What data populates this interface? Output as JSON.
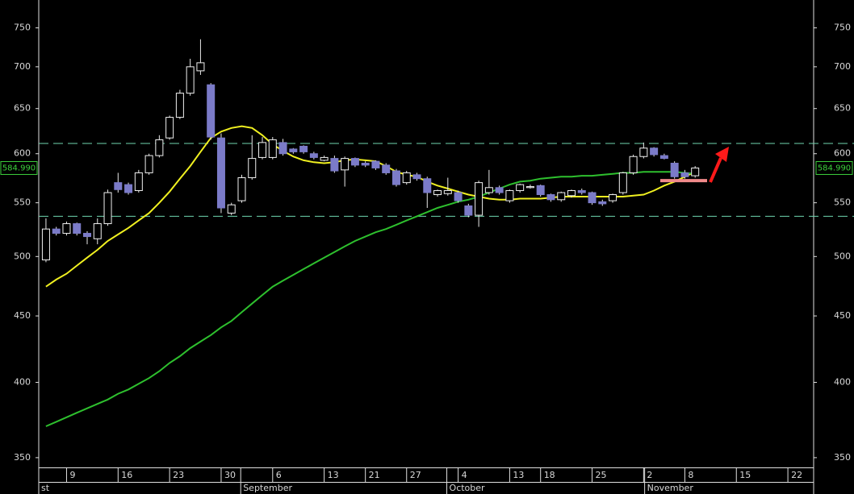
{
  "chart_data": {
    "type": "candlestick",
    "log_scale": true,
    "xlim": [
      -0.7,
      74.5
    ],
    "ylim": [
      344,
      788
    ],
    "yticks": [
      350,
      400,
      450,
      500,
      550,
      600,
      650,
      700,
      750
    ],
    "xticks": [
      {
        "value": 2,
        "label": "9"
      },
      {
        "value": 7,
        "label": "16"
      },
      {
        "value": 12,
        "label": "23"
      },
      {
        "value": 17,
        "label": "30"
      },
      {
        "value": 22,
        "label": "6"
      },
      {
        "value": 27,
        "label": "13"
      },
      {
        "value": 31,
        "label": "21"
      },
      {
        "value": 35,
        "label": "27"
      },
      {
        "value": 40,
        "label": "4"
      },
      {
        "value": 45,
        "label": "13"
      },
      {
        "value": 48,
        "label": "18"
      },
      {
        "value": 53,
        "label": "25"
      },
      {
        "value": 58,
        "label": "2"
      },
      {
        "value": 62,
        "label": "8"
      },
      {
        "value": 67,
        "label": "15"
      },
      {
        "value": 72,
        "label": "22"
      }
    ],
    "month_ticks": [
      {
        "value": -0.7,
        "label": "st"
      },
      {
        "value": 18.9,
        "label": "September"
      },
      {
        "value": 38.9,
        "label": "October"
      },
      {
        "value": 58.1,
        "label": "November"
      }
    ],
    "up_color": "#000000",
    "down_color": "#7b7bc8",
    "open": [
      497,
      525,
      521,
      530,
      521,
      516,
      530,
      570,
      568,
      562,
      580,
      598,
      617,
      640,
      668,
      695,
      678,
      617,
      540,
      552,
      575,
      596,
      596,
      612,
      605,
      608,
      600,
      593,
      595,
      583,
      595,
      590,
      592,
      588,
      582,
      570,
      578,
      574,
      558,
      559,
      560,
      547,
      538,
      560,
      565,
      552,
      562,
      565,
      567,
      558,
      553,
      557,
      562,
      560,
      551,
      552,
      560,
      580,
      597,
      606,
      598,
      590,
      580,
      577
    ],
    "high": [
      535,
      527,
      532,
      531,
      523,
      535,
      563,
      580,
      570,
      583,
      600,
      620,
      642,
      672,
      710,
      735,
      680,
      622,
      550,
      578,
      620,
      618,
      618,
      616,
      606,
      609,
      602,
      598,
      598,
      597,
      596,
      592,
      593,
      590,
      584,
      582,
      580,
      576,
      563,
      575,
      562,
      549,
      572,
      583,
      567,
      563,
      569,
      568,
      568,
      559,
      561,
      563,
      564,
      561,
      553,
      559,
      581,
      599,
      612,
      607,
      600,
      592,
      583,
      587
    ],
    "low": [
      495,
      519,
      519,
      519,
      511,
      511,
      528,
      560,
      558,
      560,
      578,
      596,
      615,
      638,
      665,
      690,
      615,
      540,
      538,
      550,
      573,
      594,
      594,
      598,
      600,
      600,
      594,
      592,
      580,
      566,
      586,
      586,
      583,
      578,
      566,
      568,
      572,
      545,
      556,
      557,
      550,
      536,
      527,
      558,
      558,
      550,
      560,
      564,
      556,
      551,
      551,
      555,
      558,
      548,
      547,
      550,
      558,
      578,
      595,
      597,
      594,
      574,
      574,
      575
    ],
    "close": [
      525,
      521,
      530,
      521,
      518,
      530,
      560,
      563,
      560,
      580,
      598,
      615,
      640,
      668,
      700,
      705,
      618,
      545,
      548,
      575,
      595,
      612,
      615,
      600,
      602,
      602,
      596,
      596,
      582,
      595,
      588,
      588,
      585,
      580,
      568,
      580,
      574,
      560,
      562,
      562,
      552,
      538,
      570,
      565,
      560,
      562,
      568,
      566,
      558,
      553,
      560,
      562,
      560,
      550,
      549,
      558,
      580,
      597,
      606,
      599,
      595,
      576,
      576,
      585
    ],
    "series": [
      {
        "color": "#f0f020",
        "values": [
          474,
          480,
          485,
          492,
          499,
          506,
          514,
          520,
          526,
          533,
          540,
          550,
          561,
          574,
          587,
          602,
          617,
          624,
          628,
          630,
          628,
          620,
          610,
          603,
          597,
          593,
          591,
          590,
          591,
          593,
          594,
          593,
          592,
          587,
          581,
          578,
          576,
          571,
          567,
          564,
          561,
          558,
          556,
          554,
          553,
          553,
          554,
          554,
          554,
          555,
          556,
          556,
          556,
          556,
          556,
          556,
          556,
          557,
          558,
          562,
          567,
          571,
          576,
          581
        ]
      },
      {
        "color": "#2ec02e",
        "values": [
          370,
          373,
          376,
          379,
          382,
          385,
          388,
          392,
          395,
          399,
          403,
          408,
          414,
          419,
          425,
          430,
          435,
          441,
          446,
          453,
          460,
          467,
          474,
          479,
          484,
          489,
          494,
          499,
          504,
          509,
          514,
          518,
          522,
          525,
          529,
          533,
          537,
          541,
          545,
          548,
          551,
          553,
          556,
          560,
          564,
          568,
          571,
          572,
          574,
          575,
          576,
          576,
          577,
          577,
          578,
          579,
          580,
          580,
          581,
          581,
          581,
          581,
          580,
          579
        ]
      }
    ],
    "hlines": [
      611,
      537
    ],
    "hline_color": "#6fd6b0",
    "annotation_level": 572,
    "annotation_color": "#f08a8a",
    "last_price": {
      "value": 584.99,
      "label": "584.990"
    }
  }
}
